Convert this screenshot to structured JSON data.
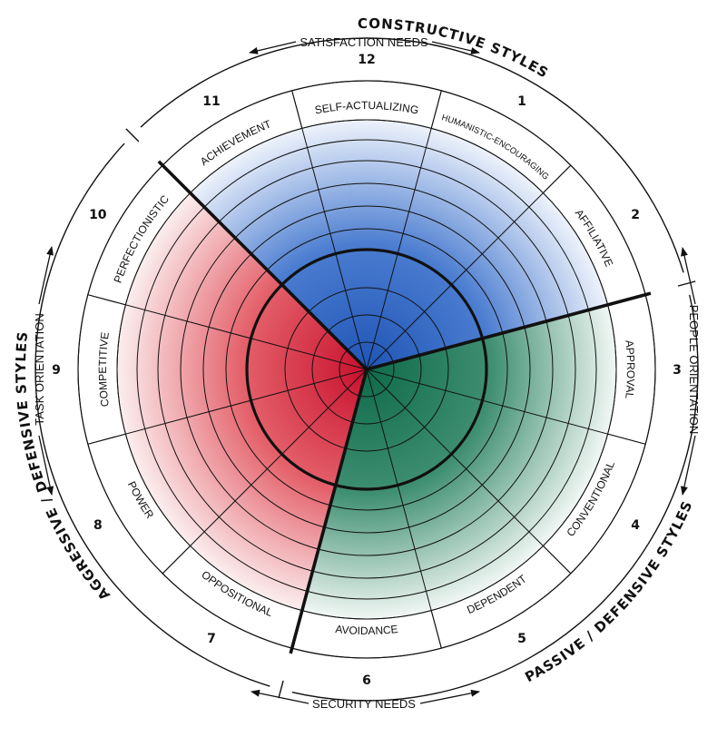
{
  "clusters": {
    "constructive": {
      "label": "CONSTRUCTIVE STYLES",
      "color": "#2f64bf"
    },
    "passive": {
      "label": "PASSIVE / DEFENSIVE STYLES",
      "color": "#1f7a5a"
    },
    "aggressive": {
      "label": "AGGRESSIVE / DEFENSIVE STYLES",
      "color": "#d22a3a"
    }
  },
  "orientations": {
    "satisfaction": "SATISFACTION NEEDS",
    "security": "SECURITY NEEDS",
    "task": "TASK ORIENTATION",
    "people": "PEOPLE ORIENTATION"
  },
  "styles": [
    {
      "num": "1",
      "label": "HUMANISTIC-ENCOURAGING",
      "cluster": "constructive",
      "small": true
    },
    {
      "num": "2",
      "label": "AFFILIATIVE",
      "cluster": "constructive"
    },
    {
      "num": "3",
      "label": "APPROVAL",
      "cluster": "passive"
    },
    {
      "num": "4",
      "label": "CONVENTIONAL",
      "cluster": "passive"
    },
    {
      "num": "5",
      "label": "DEPENDENT",
      "cluster": "passive"
    },
    {
      "num": "6",
      "label": "AVOIDANCE",
      "cluster": "passive"
    },
    {
      "num": "7",
      "label": "OPPOSITIONAL",
      "cluster": "aggressive"
    },
    {
      "num": "8",
      "label": "POWER",
      "cluster": "aggressive"
    },
    {
      "num": "9",
      "label": "COMPETITIVE",
      "cluster": "aggressive"
    },
    {
      "num": "10",
      "label": "PERFECTIONISTIC",
      "cluster": "aggressive"
    },
    {
      "num": "11",
      "label": "ACHIEVEMENT",
      "cluster": "constructive"
    },
    {
      "num": "12",
      "label": "SELF-ACTUALIZING",
      "cluster": "constructive"
    }
  ]
}
